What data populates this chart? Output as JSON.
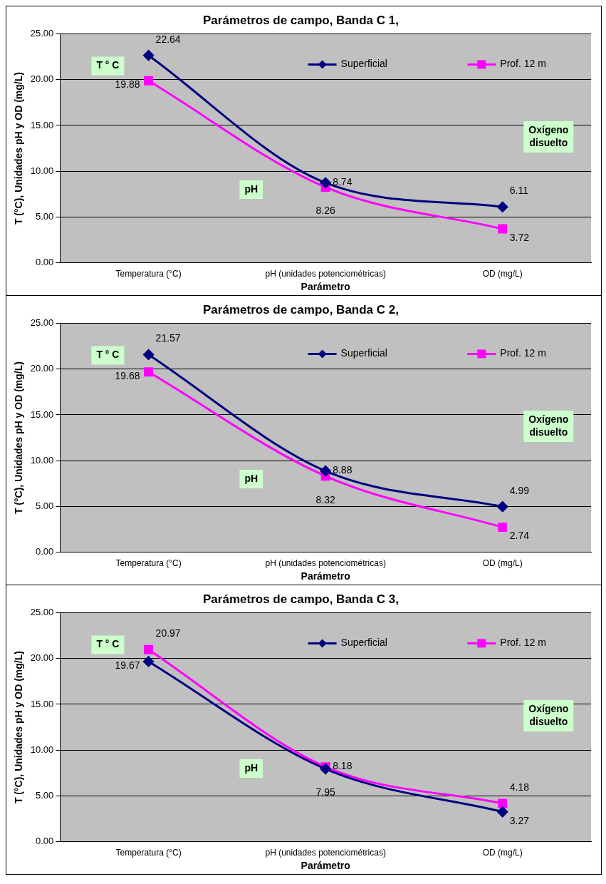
{
  "chart_data": [
    {
      "type": "line",
      "title": "Parámetros de campo, Banda C 1,",
      "xlabel": "Parámetro",
      "ylabel": "T (°C), Unidades pH y OD (mg/L)",
      "categories": [
        "Temperatura (°C)",
        "pH (unidades potenciométricas)",
        "OD (mg/L)"
      ],
      "series": [
        {
          "name": "Superficial",
          "color": "#000080",
          "marker": "diamond",
          "values": [
            22.64,
            8.74,
            6.11
          ]
        },
        {
          "name": "Prof. 12 m",
          "color": "#ff00ff",
          "marker": "square",
          "values": [
            19.88,
            8.26,
            3.72
          ]
        }
      ],
      "ylim": [
        0,
        25
      ],
      "yticks": [
        {
          "value": 0,
          "label": "0.00"
        },
        {
          "value": 5,
          "label": "5.00"
        },
        {
          "value": 10,
          "label": "10.00"
        },
        {
          "value": 15,
          "label": "15.00"
        },
        {
          "value": 20,
          "label": "20.00"
        },
        {
          "value": 25,
          "label": "25.00"
        }
      ],
      "grid": "y",
      "legend": "top right",
      "data_labels": true,
      "annotations": [
        "T ° C",
        "pH",
        "Oxígeno disuelto"
      ]
    },
    {
      "type": "line",
      "title": "Parámetros de campo, Banda C 2,",
      "xlabel": "Parámetro",
      "ylabel": "T (°C), Unidades pH y OD (mg/L)",
      "categories": [
        "Temperatura (°C)",
        "pH (unidades potenciométricas)",
        "OD (mg/L)"
      ],
      "series": [
        {
          "name": "Superficial",
          "color": "#000080",
          "marker": "diamond",
          "values": [
            21.57,
            8.88,
            4.99
          ]
        },
        {
          "name": "Prof. 12 m",
          "color": "#ff00ff",
          "marker": "square",
          "values": [
            19.68,
            8.32,
            2.74
          ]
        }
      ],
      "ylim": [
        0,
        25
      ],
      "yticks": [
        {
          "value": 0,
          "label": "0.00"
        },
        {
          "value": 5,
          "label": "5.00"
        },
        {
          "value": 10,
          "label": "10.00"
        },
        {
          "value": 15,
          "label": "15.00"
        },
        {
          "value": 20,
          "label": "20.00"
        },
        {
          "value": 25,
          "label": "25.00"
        }
      ],
      "grid": "y",
      "legend": "top right",
      "data_labels": true,
      "annotations": [
        "T ° C",
        "pH",
        "Oxígeno disuelto"
      ]
    },
    {
      "type": "line",
      "title": "Parámetros de campo, Banda C 3,",
      "xlabel": "Parámetro",
      "ylabel": "T (°C), Unidades pH y OD (mg/L)",
      "categories": [
        "Temperatura (°C)",
        "pH (unidades potenciométricas)",
        "OD (mg/L)"
      ],
      "series": [
        {
          "name": "Superficial",
          "color": "#000080",
          "marker": "diamond",
          "values": [
            19.67,
            7.95,
            3.27
          ]
        },
        {
          "name": "Prof. 12 m",
          "color": "#ff00ff",
          "marker": "square",
          "values": [
            20.97,
            8.18,
            4.18
          ]
        }
      ],
      "ylim": [
        0,
        25
      ],
      "yticks": [
        {
          "value": 0,
          "label": "0.00"
        },
        {
          "value": 5,
          "label": "5.00"
        },
        {
          "value": 10,
          "label": "10.00"
        },
        {
          "value": 15,
          "label": "15.00"
        },
        {
          "value": 20,
          "label": "20.00"
        },
        {
          "value": 25,
          "label": "25.00"
        }
      ],
      "grid": "y",
      "legend": "top right",
      "data_labels": true,
      "annotations": [
        "T ° C",
        "pH",
        "Oxígeno disuelto"
      ]
    }
  ]
}
